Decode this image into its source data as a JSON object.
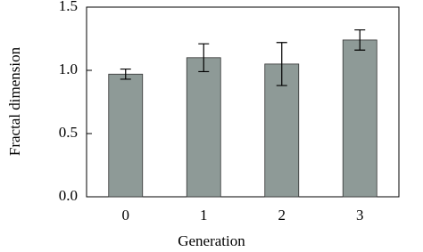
{
  "chart_data": {
    "type": "bar",
    "x_label": "Generation",
    "y_label": "Fractal dimension",
    "categories": [
      "0",
      "1",
      "2",
      "3"
    ],
    "values": [
      0.97,
      1.1,
      1.05,
      1.24
    ],
    "errors": [
      0.04,
      0.11,
      0.17,
      0.08
    ],
    "color": "#8e9a97",
    "ylim": [
      0,
      1.5
    ],
    "yticks": [
      {
        "value": 0,
        "label": "0.0"
      },
      0.5,
      {
        "value": 1,
        "label": "1.0"
      },
      1.5
    ]
  }
}
